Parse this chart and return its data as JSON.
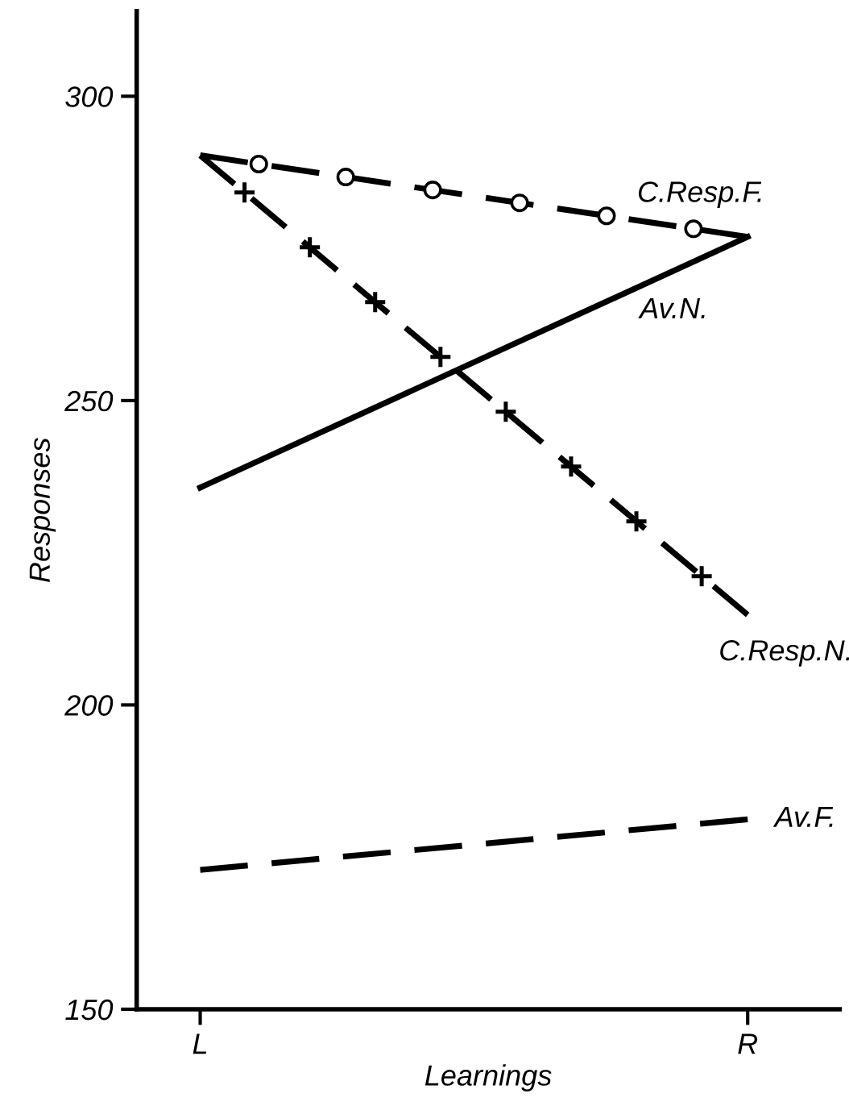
{
  "chart_data": {
    "type": "line",
    "xlabel": "Learnings",
    "ylabel": "Responses",
    "categories": [
      "L",
      "R"
    ],
    "ylim": [
      150,
      314
    ],
    "yticks": [
      150,
      200,
      250,
      300
    ],
    "grid": false,
    "legend": false,
    "series": [
      {
        "name": "C.Resp.F.",
        "color": "#000000",
        "line_style": "dashed",
        "values": [
          290.3,
          276.9
        ]
      },
      {
        "name": "C.Resp.N.",
        "color": "#000000",
        "line_style": "dashed",
        "values": [
          290.3,
          214.8
        ]
      },
      {
        "name": "Av.N.",
        "color": "#000000",
        "line_style": "solid",
        "values": [
          235.7,
          276.9
        ]
      },
      {
        "name": "Av.F.",
        "color": "#000000",
        "line_style": "dashed",
        "values": [
          172.9,
          181.2
        ]
      }
    ]
  }
}
